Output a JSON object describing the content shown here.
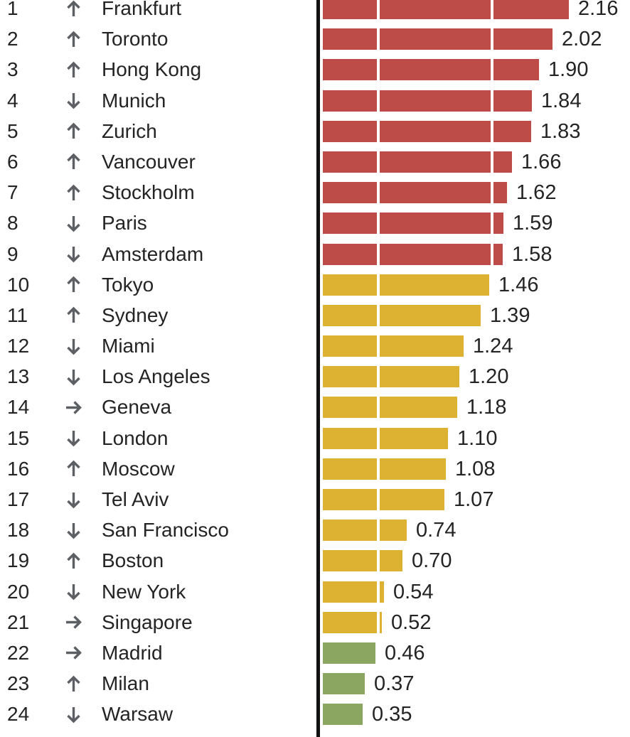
{
  "colors": {
    "bubble_risk": "#bd4b47",
    "overvalued": "#ddb233",
    "fair_valued": "#8ba661",
    "axis": "#111111",
    "arrow": "#5c6064",
    "text": "#242424",
    "background": "#ffffff",
    "gridline_gap": "#ffffff"
  },
  "chart_data": {
    "type": "bar",
    "orientation": "horizontal",
    "title": "",
    "xlabel": "",
    "ylabel": "",
    "legend_position": "none",
    "grid": "threshold gridlines shown as white gaps inside bars",
    "threshold_lines": [
      0.5,
      1.5
    ],
    "zero_axis_line": true,
    "xlim": [
      0,
      2.7
    ],
    "color_coding": {
      "bubble_risk": "red: index above 1.5",
      "overvalued": "yellow: index between 0.5 and 1.5",
      "fair_valued": "green: index below 0.5"
    },
    "trend_legend": {
      "up": "rank moved up",
      "down": "rank moved down",
      "unchanged": "rank unchanged"
    },
    "rows": [
      {
        "rank": "1",
        "trend": "up",
        "city": "Frankfurt",
        "value": 2.16,
        "label": "2.16",
        "category": "bubble_risk"
      },
      {
        "rank": "2",
        "trend": "up",
        "city": "Toronto",
        "value": 2.02,
        "label": "2.02",
        "category": "bubble_risk"
      },
      {
        "rank": "3",
        "trend": "up",
        "city": "Hong Kong",
        "value": 1.9,
        "label": "1.90",
        "category": "bubble_risk"
      },
      {
        "rank": "4",
        "trend": "down",
        "city": "Munich",
        "value": 1.84,
        "label": "1.84",
        "category": "bubble_risk"
      },
      {
        "rank": "5",
        "trend": "up",
        "city": "Zurich",
        "value": 1.83,
        "label": "1.83",
        "category": "bubble_risk"
      },
      {
        "rank": "6",
        "trend": "up",
        "city": "Vancouver",
        "value": 1.66,
        "label": "1.66",
        "category": "bubble_risk"
      },
      {
        "rank": "7",
        "trend": "up",
        "city": "Stockholm",
        "value": 1.62,
        "label": "1.62",
        "category": "bubble_risk"
      },
      {
        "rank": "8",
        "trend": "down",
        "city": "Paris",
        "value": 1.59,
        "label": "1.59",
        "category": "bubble_risk"
      },
      {
        "rank": "9",
        "trend": "down",
        "city": "Amsterdam",
        "value": 1.58,
        "label": "1.58",
        "category": "bubble_risk"
      },
      {
        "rank": "10",
        "trend": "up",
        "city": "Tokyo",
        "value": 1.46,
        "label": "1.46",
        "category": "overvalued"
      },
      {
        "rank": "11",
        "trend": "up",
        "city": "Sydney",
        "value": 1.39,
        "label": "1.39",
        "category": "overvalued"
      },
      {
        "rank": "12",
        "trend": "down",
        "city": "Miami",
        "value": 1.24,
        "label": "1.24",
        "category": "overvalued"
      },
      {
        "rank": "13",
        "trend": "down",
        "city": "Los Angeles",
        "value": 1.2,
        "label": "1.20",
        "category": "overvalued"
      },
      {
        "rank": "14",
        "trend": "unchanged",
        "city": "Geneva",
        "value": 1.18,
        "label": "1.18",
        "category": "overvalued"
      },
      {
        "rank": "15",
        "trend": "down",
        "city": "London",
        "value": 1.1,
        "label": "1.10",
        "category": "overvalued"
      },
      {
        "rank": "16",
        "trend": "up",
        "city": "Moscow",
        "value": 1.08,
        "label": "1.08",
        "category": "overvalued"
      },
      {
        "rank": "17",
        "trend": "down",
        "city": "Tel Aviv",
        "value": 1.07,
        "label": "1.07",
        "category": "overvalued"
      },
      {
        "rank": "18",
        "trend": "down",
        "city": "San Francisco",
        "value": 0.74,
        "label": "0.74",
        "category": "overvalued"
      },
      {
        "rank": "19",
        "trend": "up",
        "city": "Boston",
        "value": 0.7,
        "label": "0.70",
        "category": "overvalued"
      },
      {
        "rank": "20",
        "trend": "down",
        "city": "New York",
        "value": 0.54,
        "label": "0.54",
        "category": "overvalued"
      },
      {
        "rank": "21",
        "trend": "unchanged",
        "city": "Singapore",
        "value": 0.52,
        "label": "0.52",
        "category": "overvalued"
      },
      {
        "rank": "22",
        "trend": "unchanged",
        "city": "Madrid",
        "value": 0.46,
        "label": "0.46",
        "category": "fair_valued"
      },
      {
        "rank": "23",
        "trend": "up",
        "city": "Milan",
        "value": 0.37,
        "label": "0.37",
        "category": "fair_valued"
      },
      {
        "rank": "24",
        "trend": "down",
        "city": "Warsaw",
        "value": 0.35,
        "label": "0.35",
        "category": "fair_valued"
      }
    ]
  }
}
